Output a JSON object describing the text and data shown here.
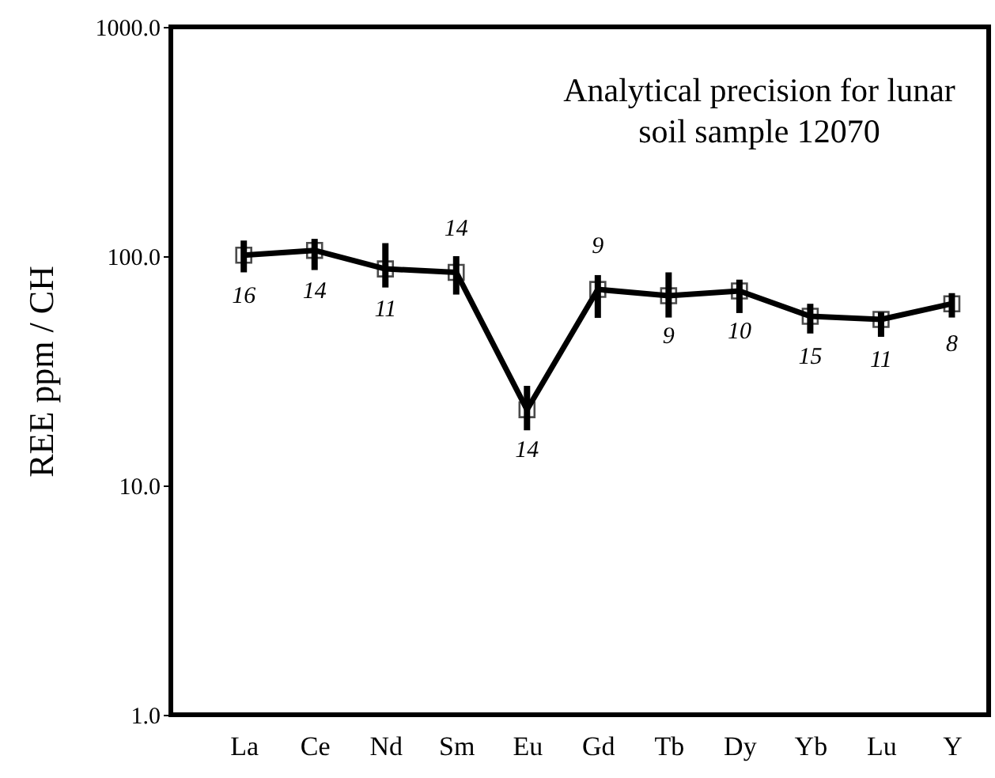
{
  "chart_data": {
    "type": "line",
    "title": "Analytical precision for lunar soil sample 12070",
    "ylabel": "REE ppm / CH",
    "categories": [
      "La",
      "Ce",
      "Nd",
      "Sm",
      "Eu",
      "Gd",
      "Tb",
      "Dy",
      "Yb",
      "Lu",
      "Y"
    ],
    "series": [
      {
        "color": "#000000",
        "values": [
          101,
          106,
          88,
          85,
          21.4,
          71.6,
          67.2,
          70.5,
          54.7,
          53,
          62
        ],
        "errors": [
          [
            85,
            117
          ],
          [
            87,
            119
          ],
          [
            73,
            114
          ],
          [
            68,
            100
          ],
          [
            17.4,
            27.2
          ],
          [
            53.8,
            82.7
          ],
          [
            54,
            85
          ],
          [
            56.5,
            79
          ],
          [
            46,
            62
          ],
          [
            44.5,
            57
          ],
          [
            54,
            69
          ]
        ]
      }
    ],
    "ylim": [
      1,
      1000
    ],
    "yticks": [
      {
        "value": 1,
        "label": "1.0"
      },
      {
        "value": 10,
        "label": "10.0"
      },
      {
        "value": 100,
        "label": "100.0"
      },
      {
        "value": 1000,
        "label": "1000.0"
      }
    ],
    "log": "y",
    "grid": false,
    "marker": "square",
    "line_style": "solid",
    "annotations": [
      {
        "text": "16",
        "x": "La",
        "y": 101
      },
      {
        "text": "14",
        "x": "Ce",
        "y": 106
      },
      {
        "text": "11",
        "x": "Nd",
        "y": 88
      },
      {
        "text": "14",
        "x": "Sm",
        "y": 85
      },
      {
        "text": "14",
        "x": "Eu",
        "y": 21.4
      },
      {
        "text": "9",
        "x": "Gd",
        "y": 71.6
      },
      {
        "text": "9",
        "x": "Tb",
        "y": 67.2
      },
      {
        "text": "10",
        "x": "Dy",
        "y": 70.5
      },
      {
        "text": "15",
        "x": "Yb",
        "y": 54.7
      },
      {
        "text": "11",
        "x": "Lu",
        "y": 53
      },
      {
        "text": "8",
        "x": "Y",
        "y": 62
      }
    ]
  }
}
